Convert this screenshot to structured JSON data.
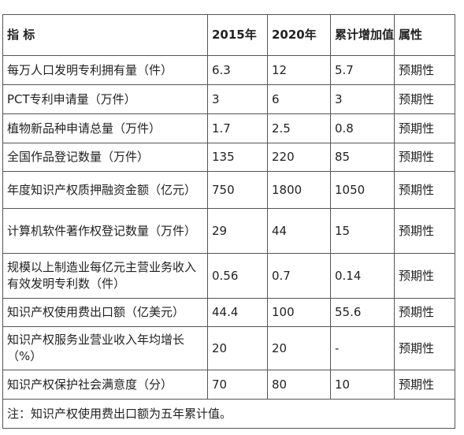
{
  "header": {
    "indicator": "指 标",
    "y2015": "2015年",
    "y2020": "2020年",
    "increase": "累计增加值",
    "attribute": "属性"
  },
  "rows": [
    {
      "indicator": "每万人口发明专利拥有量（件）",
      "y2015": "6.3",
      "y2020": "12",
      "increase": "5.7",
      "attribute": "预期性"
    },
    {
      "indicator": "PCT专利申请量（万件）",
      "y2015": "3",
      "y2020": "6",
      "increase": "3",
      "attribute": "预期性"
    },
    {
      "indicator": "植物新品种申请总量（万件）",
      "y2015": "1.7",
      "y2020": "2.5",
      "increase": "0.8",
      "attribute": "预期性"
    },
    {
      "indicator": "全国作品登记数量（万件）",
      "y2015": "135",
      "y2020": "220",
      "increase": "85",
      "attribute": "预期性"
    },
    {
      "indicator": "年度知识产权质押融资金额（亿元）",
      "y2015": "750",
      "y2020": "1800",
      "increase": "1050",
      "attribute": "预期性"
    },
    {
      "indicator": "计算机软件著作权登记数量（万件）",
      "y2015": "29",
      "y2020": "44",
      "increase": "15",
      "attribute": "预期性"
    },
    {
      "indicator": "规模以上制造业每亿元主营业务收入有效发明专利数（件）",
      "y2015": "0.56",
      "y2020": "0.7",
      "increase": "0.14",
      "attribute": "预期性"
    },
    {
      "indicator": "知识产权使用费出口额（亿美元）",
      "y2015": "44.4",
      "y2020": "100",
      "increase": "55.6",
      "attribute": "预期性"
    },
    {
      "indicator": "知识产权服务业营业收入年均增长（%）",
      "y2015": "20",
      "y2020": "20",
      "increase": "-",
      "attribute": "预期性"
    },
    {
      "indicator": "知识产权保护社会满意度（分）",
      "y2015": "70",
      "y2020": "80",
      "increase": "10",
      "attribute": "预期性"
    }
  ],
  "note": "注：知识产权使用费出口额为五年累计值。"
}
